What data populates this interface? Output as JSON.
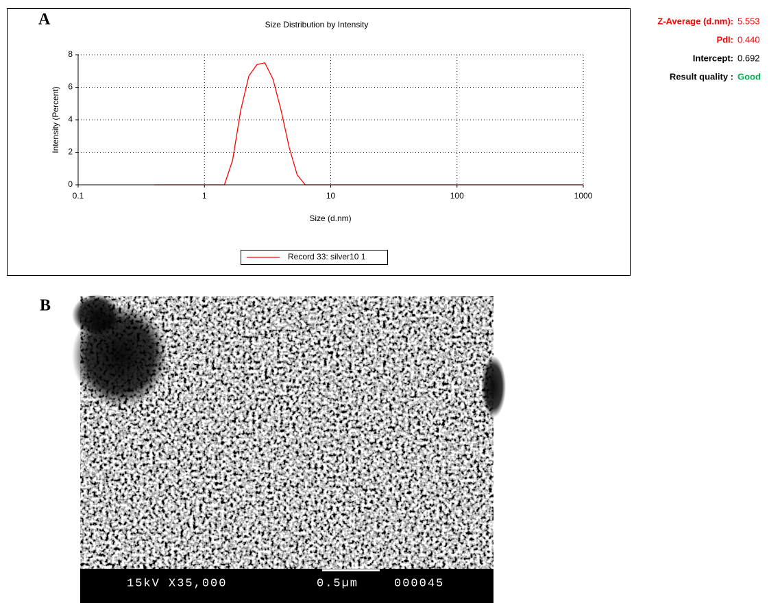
{
  "chart_data": {
    "type": "line",
    "title": "Size Distribution by Intensity",
    "x_label": "Size (d.nm)",
    "y_label": "Intensity (Percent)",
    "x": [
      0.4,
      0.6,
      0.8,
      1.0,
      1.2,
      1.44,
      1.67,
      1.94,
      2.25,
      2.61,
      3.01,
      3.49,
      4.04,
      4.69,
      5.43,
      6.29,
      8,
      10,
      20,
      50,
      100,
      200,
      500,
      1000
    ],
    "series": [
      {
        "name": "Record 33: silver10 1",
        "color": "#ff0000",
        "values": [
          0,
          0,
          0,
          0,
          0,
          0,
          1.5,
          4.6,
          6.7,
          7.4,
          7.5,
          6.5,
          4.6,
          2.3,
          0.6,
          0,
          0,
          0,
          0,
          0,
          0,
          0,
          0,
          0
        ]
      }
    ],
    "xlim": [
      0.1,
      1000
    ],
    "xticks": [
      0.1,
      1,
      10,
      100,
      1000
    ],
    "xscale": "log",
    "ylim": [
      0,
      8
    ],
    "yticks": [
      0,
      2,
      4,
      6,
      8
    ],
    "grid": true,
    "legend": "bottom"
  },
  "panels": [
    "A",
    "B"
  ],
  "results": [
    {
      "label": "Z-Average (d.nm):",
      "value": "5.553",
      "color": "#ff0000"
    },
    {
      "label": "PdI:",
      "value": "0.440",
      "color": "#ff0000"
    },
    {
      "label": "Intercept:",
      "value": "0.692",
      "color": "#000000"
    },
    {
      "label": "Result quality :",
      "value": "Good",
      "color": "#00b050"
    }
  ],
  "sem_image": {
    "voltage_mag": "15kV X35,000",
    "scale": "0.5µm",
    "number": "000045"
  }
}
